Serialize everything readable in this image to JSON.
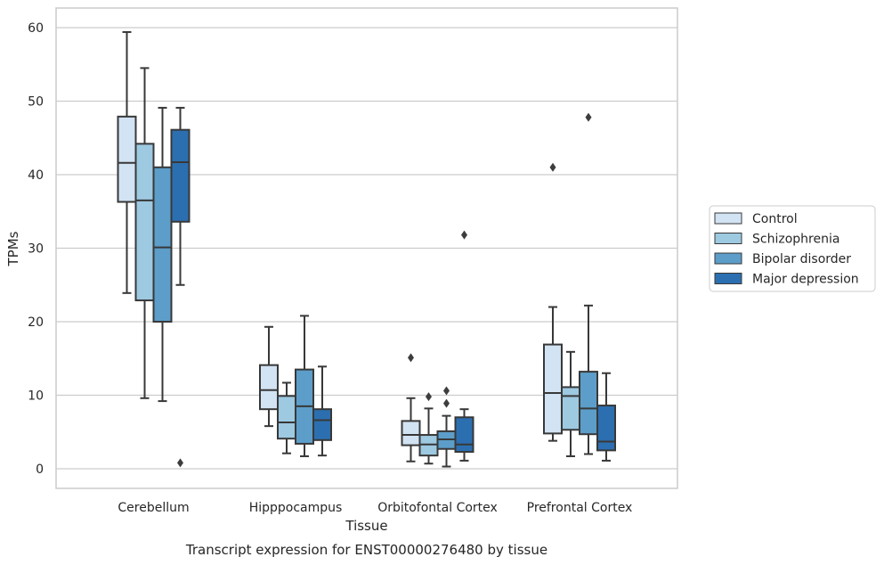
{
  "chart_data": {
    "type": "boxplot",
    "title": "",
    "caption": "Transcript expression for ENST00000276480 by tissue",
    "xlabel": "Tissue",
    "ylabel": "TPMs",
    "ylim": [
      -2.5,
      62.5
    ],
    "yticks": [
      0,
      10,
      20,
      30,
      40,
      50,
      60
    ],
    "grid": "horizontal",
    "legend_position": "right-outside",
    "categories": [
      "Cerebellum",
      "Hipppocampus",
      "Orbitofontal Cortex",
      "Prefrontal Cortex"
    ],
    "series": [
      {
        "name": "Control",
        "color": "#d2e3f3",
        "boxes": [
          {
            "whisker_low": 23.9,
            "q1": 36.3,
            "median": 41.6,
            "q3": 47.9,
            "whisker_high": 59.4,
            "outliers": []
          },
          {
            "whisker_low": 5.8,
            "q1": 8.1,
            "median": 10.7,
            "q3": 14.1,
            "whisker_high": 19.3,
            "outliers": []
          },
          {
            "whisker_low": 1.0,
            "q1": 3.2,
            "median": 4.6,
            "q3": 6.5,
            "whisker_high": 9.6,
            "outliers": [
              15.1
            ]
          },
          {
            "whisker_low": 3.8,
            "q1": 4.8,
            "median": 10.3,
            "q3": 16.9,
            "whisker_high": 22.0,
            "outliers": [
              41.0
            ]
          }
        ]
      },
      {
        "name": "Schizophrenia",
        "color": "#9dc9e1",
        "boxes": [
          {
            "whisker_low": 9.6,
            "q1": 22.9,
            "median": 36.5,
            "q3": 44.2,
            "whisker_high": 54.5,
            "outliers": []
          },
          {
            "whisker_low": 2.1,
            "q1": 4.1,
            "median": 6.3,
            "q3": 9.9,
            "whisker_high": 11.7,
            "outliers": []
          },
          {
            "whisker_low": 0.7,
            "q1": 1.8,
            "median": 3.3,
            "q3": 4.6,
            "whisker_high": 8.2,
            "outliers": [
              9.8
            ]
          },
          {
            "whisker_low": 1.7,
            "q1": 5.3,
            "median": 9.9,
            "q3": 11.1,
            "whisker_high": 15.9,
            "outliers": []
          }
        ]
      },
      {
        "name": "Bipolar disorder",
        "color": "#5c9ec9",
        "boxes": [
          {
            "whisker_low": 9.2,
            "q1": 20.0,
            "median": 30.1,
            "q3": 41.0,
            "whisker_high": 49.1,
            "outliers": []
          },
          {
            "whisker_low": 1.7,
            "q1": 3.4,
            "median": 8.5,
            "q3": 13.5,
            "whisker_high": 20.8,
            "outliers": []
          },
          {
            "whisker_low": 0.3,
            "q1": 2.7,
            "median": 4.0,
            "q3": 5.1,
            "whisker_high": 7.2,
            "outliers": [
              8.9,
              10.6
            ]
          },
          {
            "whisker_low": 2.0,
            "q1": 4.7,
            "median": 8.2,
            "q3": 13.2,
            "whisker_high": 22.2,
            "outliers": [
              47.8
            ]
          }
        ]
      },
      {
        "name": "Major depression",
        "color": "#2c6fb0",
        "boxes": [
          {
            "whisker_low": 25.0,
            "q1": 33.6,
            "median": 41.7,
            "q3": 46.1,
            "whisker_high": 49.1,
            "outliers": [
              0.8
            ]
          },
          {
            "whisker_low": 1.8,
            "q1": 3.9,
            "median": 6.6,
            "q3": 8.1,
            "whisker_high": 13.9,
            "outliers": []
          },
          {
            "whisker_low": 1.1,
            "q1": 2.3,
            "median": 3.3,
            "q3": 7.0,
            "whisker_high": 8.1,
            "outliers": [
              31.8
            ]
          },
          {
            "whisker_low": 1.1,
            "q1": 2.5,
            "median": 3.7,
            "q3": 8.6,
            "whisker_high": 13.0,
            "outliers": []
          }
        ]
      }
    ],
    "style": {
      "line_color": "#383838",
      "grid_color": "#cccccc",
      "frame_color": "#cccccc"
    }
  }
}
